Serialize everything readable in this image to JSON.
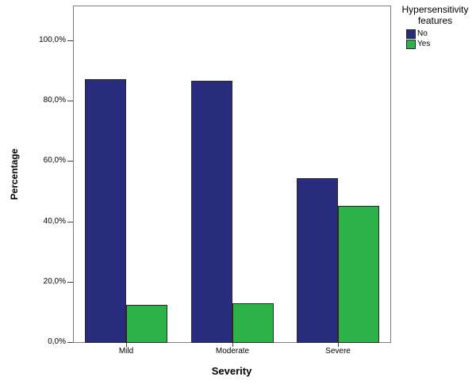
{
  "chart_data": {
    "type": "bar",
    "title": "",
    "categories": [
      "Mild",
      "Moderate",
      "Severe"
    ],
    "series": [
      {
        "name": "No",
        "color": "#292C7C",
        "values": [
          87.5,
          87.0,
          54.5
        ]
      },
      {
        "name": "Yes",
        "color": "#2EB34A",
        "values": [
          12.5,
          13.0,
          45.5
        ]
      }
    ],
    "xlabel": "Severity",
    "ylabel": "Percentage",
    "ylim": [
      0,
      110
    ],
    "ytick_values": [
      0,
      20,
      40,
      60,
      80,
      100
    ],
    "ytick_labels": [
      "0,0%",
      "20,0%",
      "40,0%",
      "60,0%",
      "80,0%",
      "100,0%"
    ],
    "grid": false,
    "legend": {
      "title_line1": "Hypersensitivity",
      "title_line2": "features",
      "position": "top-right",
      "entries": [
        "No",
        "Yes"
      ]
    },
    "colors": {
      "bar_outline": "#26262b",
      "plot_frame": "#7f7f7f",
      "tick": "#404040",
      "text": "#000000",
      "background": "#ffffff"
    }
  }
}
